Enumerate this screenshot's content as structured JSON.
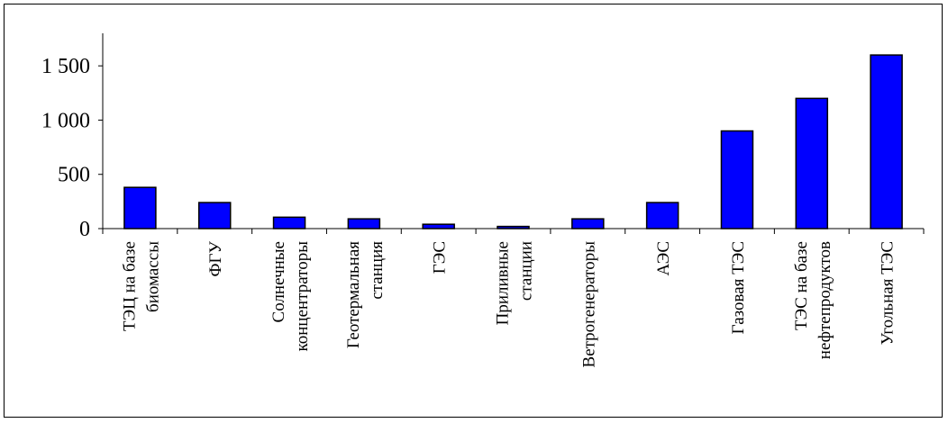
{
  "chart_data": {
    "type": "bar",
    "categories": [
      [
        "ТЭЦ на базе",
        "биомассы"
      ],
      [
        "ФГУ"
      ],
      [
        "Солнечные",
        "концентраторы"
      ],
      [
        "Геотермальная",
        "станция"
      ],
      [
        "ГЭС"
      ],
      [
        "Приливные",
        "станции"
      ],
      [
        "Ветрогенераторы"
      ],
      [
        "АЭС"
      ],
      [
        "Газовая ТЭС"
      ],
      [
        "ТЭС на базе",
        "нефтепродуктов"
      ],
      [
        "Угольная ТЭС"
      ]
    ],
    "values": [
      380,
      240,
      105,
      90,
      40,
      20,
      90,
      240,
      900,
      1200,
      1600
    ],
    "ylim": [
      0,
      1800
    ],
    "yticks": [
      0,
      500,
      1000,
      1500
    ],
    "ytick_labels": [
      "0",
      "500",
      "1 000",
      "1 500"
    ],
    "title": "",
    "xlabel": "",
    "ylabel": "",
    "grid": false,
    "bar_color": "#0000ff",
    "bar_stroke": "#000000"
  }
}
